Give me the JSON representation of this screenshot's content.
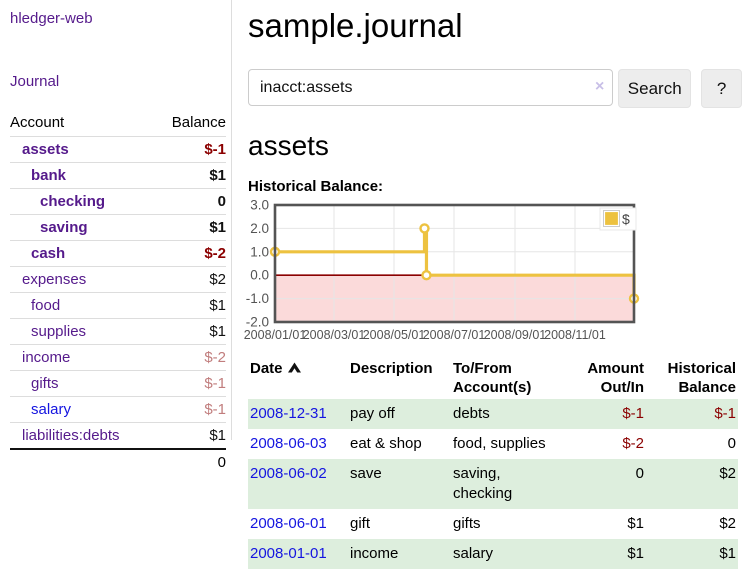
{
  "colors": {
    "link_purple": "#551a8b",
    "link_blue": "#1515e0",
    "negative_strong": "#8b0000",
    "negative_soft": "#c17d7d",
    "row_highlight_green": "#ddeedd",
    "chart_line_gold": "#edc240",
    "chart_negative_fill": "#fbdada",
    "chart_zero_line": "#8b0000",
    "chart_border": "#545454"
  },
  "sidebar": {
    "app_title": "hledger-web",
    "journal_label": "Journal",
    "accounts_table": {
      "headers": [
        "Account",
        "Balance"
      ],
      "rows": [
        {
          "name": "assets",
          "balance": "$-1",
          "indent": 0,
          "bold": true,
          "neg": "strong"
        },
        {
          "name": "bank",
          "balance": "$1",
          "indent": 1,
          "bold": true
        },
        {
          "name": "checking",
          "balance": "0",
          "indent": 2,
          "bold": true
        },
        {
          "name": "saving",
          "balance": "$1",
          "indent": 2,
          "bold": true
        },
        {
          "name": "cash",
          "balance": "$-2",
          "indent": 1,
          "bold": true,
          "neg": "strong"
        },
        {
          "name": "expenses",
          "balance": "$2",
          "indent": 0
        },
        {
          "name": "food",
          "balance": "$1",
          "indent": 1
        },
        {
          "name": "supplies",
          "balance": "$1",
          "indent": 1
        },
        {
          "name": "income",
          "balance": "$-2",
          "indent": 0,
          "neg": "soft"
        },
        {
          "name": "gifts",
          "balance": "$-1",
          "indent": 1,
          "neg": "soft"
        },
        {
          "name": "salary",
          "balance": "$-1",
          "indent": 1,
          "neg": "soft",
          "link_color": "blue"
        },
        {
          "name": "liabilities:debts",
          "balance": "$1",
          "indent": 0
        }
      ],
      "total": "0"
    }
  },
  "main": {
    "title": "sample.journal",
    "search": {
      "value": "inacct:assets",
      "clear_icon": "×",
      "search_label": "Search",
      "help_label": "?"
    },
    "account_heading": "assets",
    "chart_label": "Historical Balance:",
    "register_table": {
      "sort_icon": "chevron-up-icon",
      "headers": [
        {
          "label_lines": [
            "Date"
          ],
          "sorted": "asc",
          "align": "left"
        },
        {
          "label_lines": [
            "Description"
          ],
          "align": "left"
        },
        {
          "label_lines": [
            "To/From",
            "Account(s)"
          ],
          "align": "left"
        },
        {
          "label_lines": [
            "Amount",
            "Out/In"
          ],
          "align": "right"
        },
        {
          "label_lines": [
            "Historical",
            "Balance"
          ],
          "align": "right"
        }
      ],
      "rows": [
        {
          "date": "2008-12-31",
          "description": "pay off",
          "accounts": [
            "debts"
          ],
          "amount": "$-1",
          "balance": "$-1",
          "highlight": true
        },
        {
          "date": "2008-06-03",
          "description": "eat & shop",
          "accounts": [
            "food, supplies"
          ],
          "amount": "$-2",
          "balance": "0",
          "highlight": false
        },
        {
          "date": "2008-06-02",
          "description": "save",
          "accounts": [
            "saving,",
            "checking"
          ],
          "amount": "0",
          "balance": "$2",
          "highlight": true
        },
        {
          "date": "2008-06-01",
          "description": "gift",
          "accounts": [
            "gifts"
          ],
          "amount": "$1",
          "balance": "$2",
          "highlight": false
        },
        {
          "date": "2008-01-01",
          "description": "income",
          "accounts": [
            "salary"
          ],
          "amount": "$1",
          "balance": "$1",
          "highlight": true
        }
      ]
    }
  },
  "chart_data": {
    "type": "line",
    "title": "Historical Balance",
    "step": true,
    "series": [
      {
        "name": "$",
        "points": [
          {
            "x": "2008/01/01",
            "y": 1
          },
          {
            "x": "2008/06/01",
            "y": 2
          },
          {
            "x": "2008/06/03",
            "y": 0
          },
          {
            "x": "2008/12/31",
            "y": -1
          }
        ]
      }
    ],
    "ylim": [
      -2.0,
      3.0
    ],
    "yticks": [
      3.0,
      2.0,
      1.0,
      0.0,
      -1.0,
      -2.0
    ],
    "xticks": [
      "2008/01/01",
      "2008/03/01",
      "2008/05/01",
      "2008/07/01",
      "2008/09/01",
      "2008/11/01"
    ],
    "x_range": [
      "2008/01/01",
      "2008/12/31"
    ],
    "legend": {
      "position": "top-right",
      "label": "$",
      "color": "#edc240"
    },
    "grid": true,
    "negative_region_shaded": true
  }
}
